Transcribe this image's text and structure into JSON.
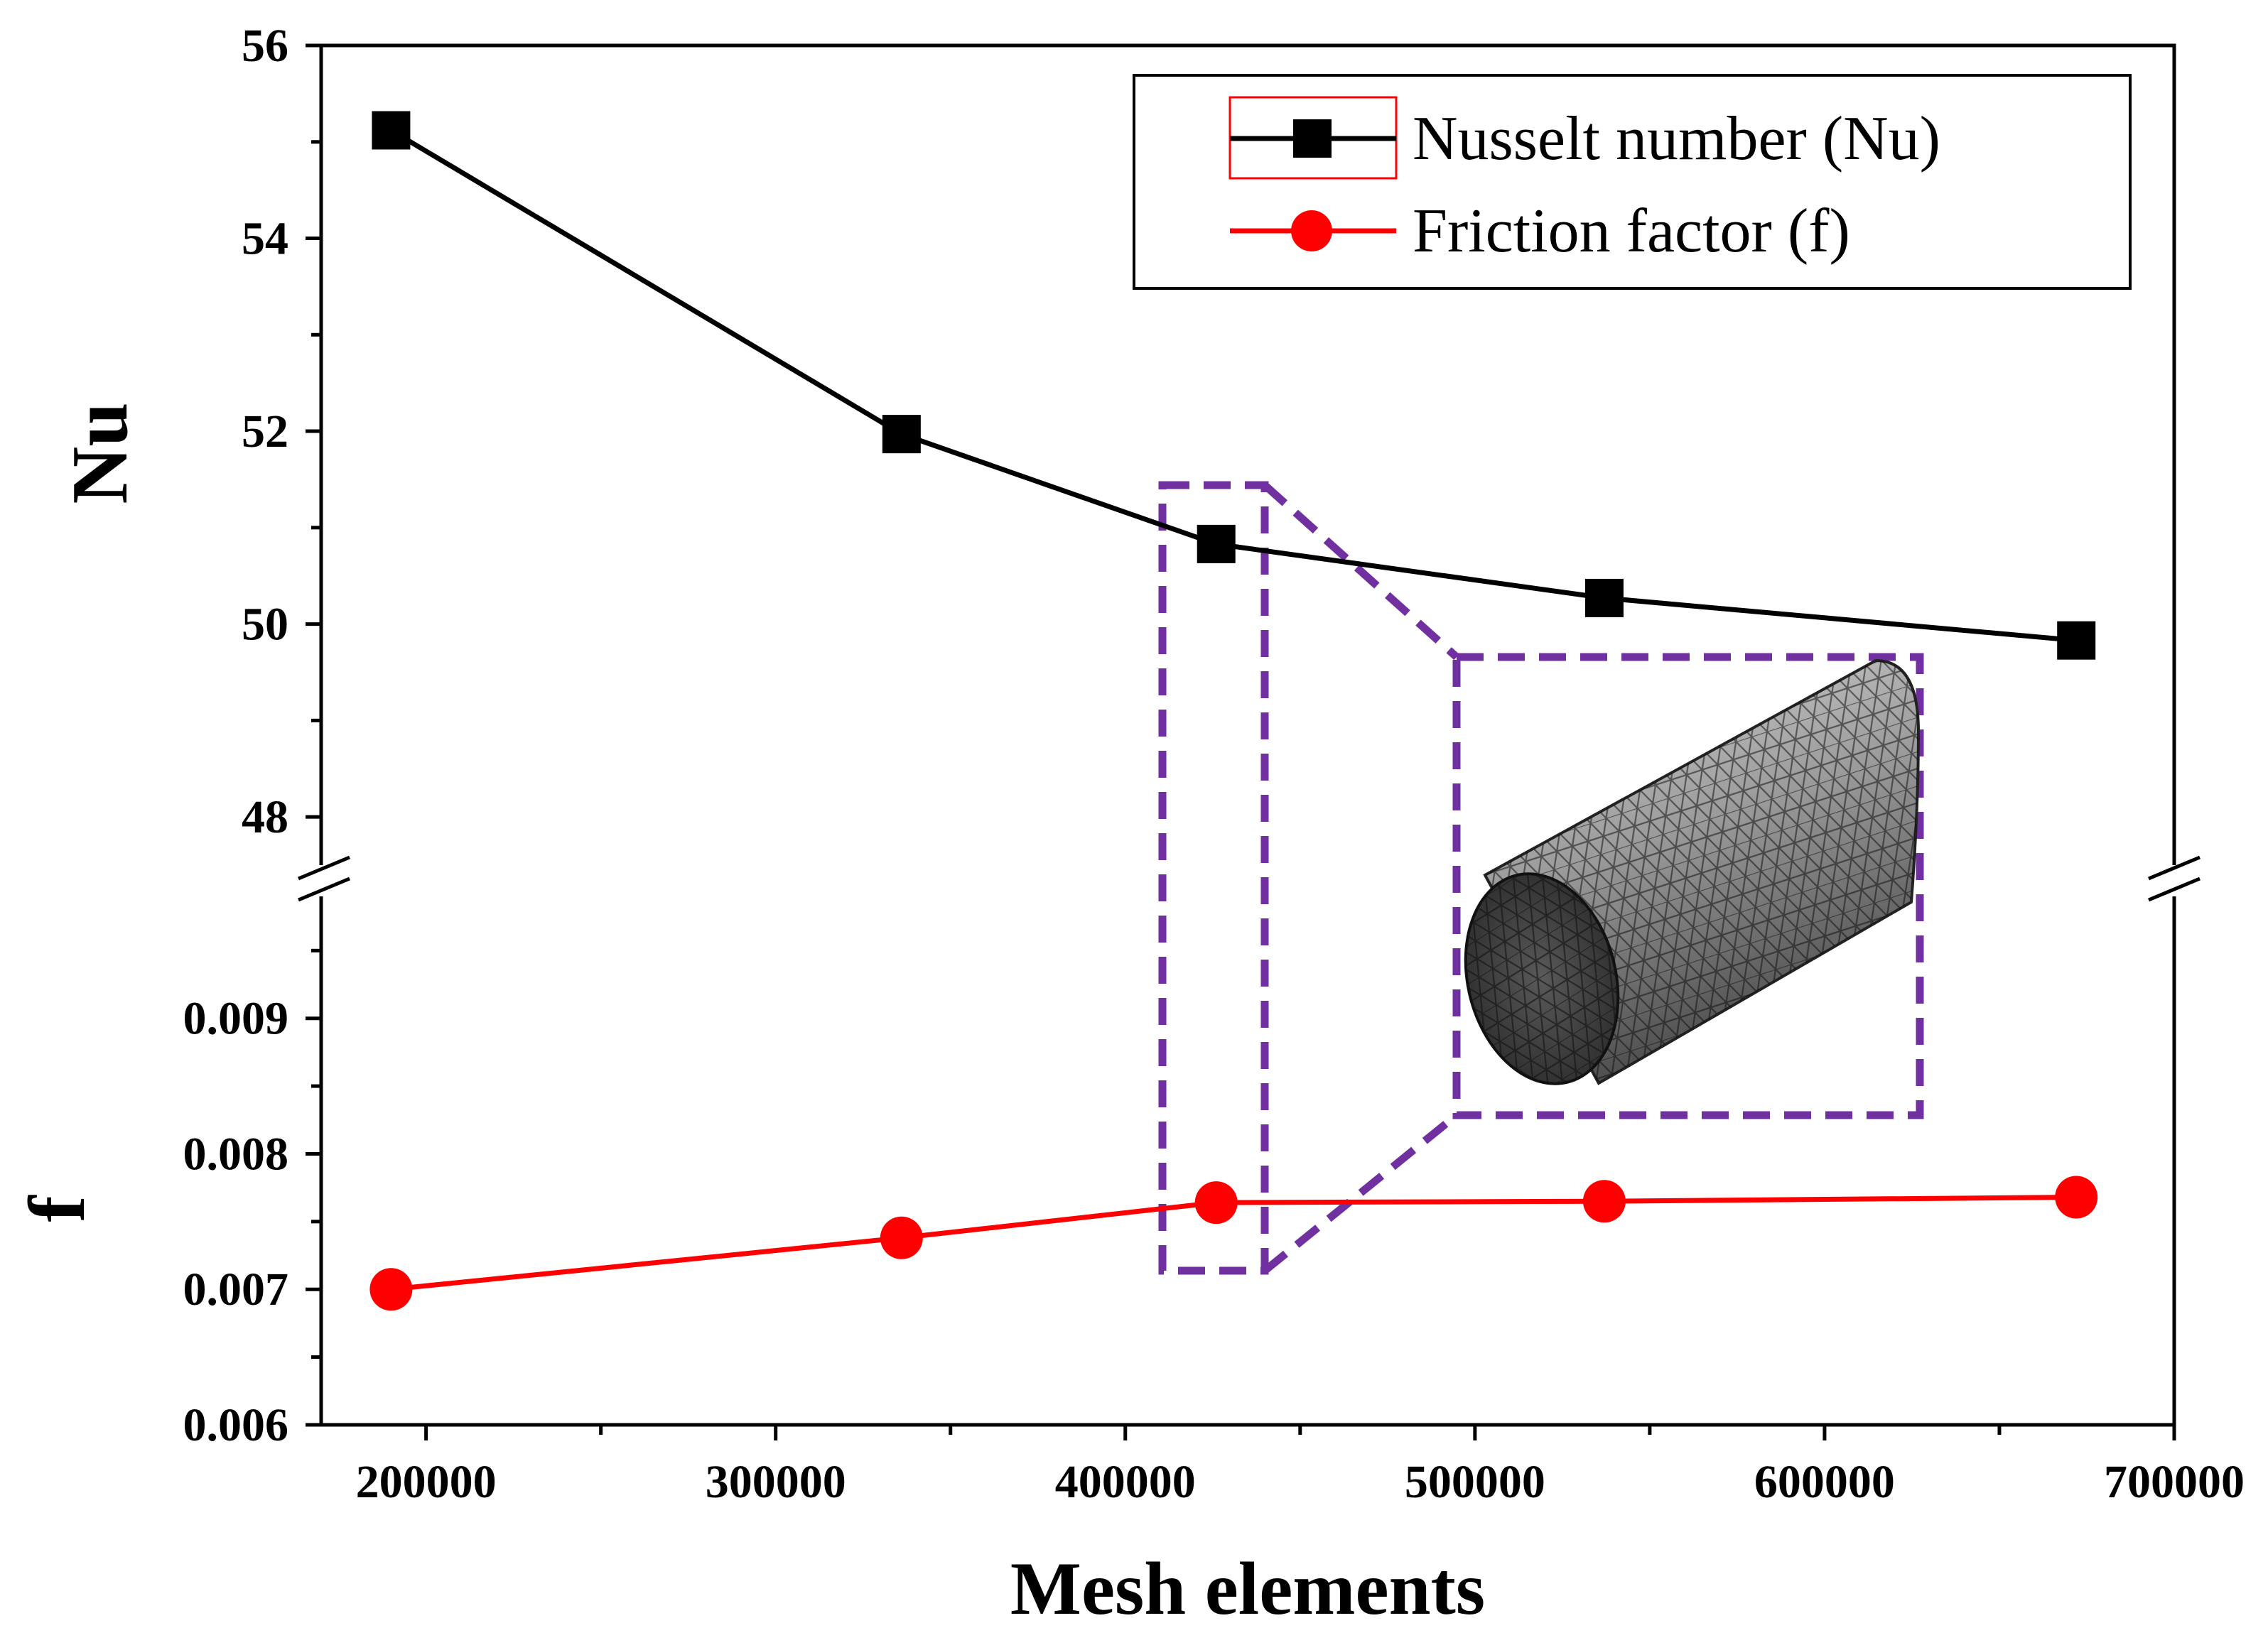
{
  "chart_data": {
    "type": "line",
    "xlabel": "Mesh elements",
    "x_ticks": [
      "200000",
      "300000",
      "400000",
      "500000",
      "600000",
      "700000"
    ],
    "xlim": [
      170000,
      700000
    ],
    "panels": [
      {
        "ylabel": "Nu",
        "ylim": [
          47.5,
          56
        ],
        "y_ticks": [
          "48",
          "50",
          "52",
          "54",
          "56"
        ],
        "series": [
          {
            "name": "Nusselt number (Nu)",
            "color": "#000000",
            "marker": "square",
            "x": [
              190000,
              336000,
              426000,
              537000,
              672000
            ],
            "y": [
              55.12,
              51.97,
              50.83,
              50.27,
              49.83
            ]
          }
        ]
      },
      {
        "ylabel": "f",
        "ylim": [
          0.006,
          0.0099
        ],
        "y_ticks": [
          "0.006",
          "0.007",
          "0.008",
          "0.009"
        ],
        "series": [
          {
            "name": "Friction factor (f)",
            "color": "#ff0000",
            "marker": "circle",
            "x": [
              190000,
              336000,
              426000,
              537000,
              672000
            ],
            "y": [
              0.007,
              0.00738,
              0.00764,
              0.00765,
              0.00768
            ]
          }
        ]
      }
    ],
    "legend": {
      "position": "top-right",
      "entries": [
        "Nusselt number (Nu)",
        "Friction factor (f)"
      ]
    },
    "annotation": "dashed zoom box from the 426000-element point to an inset showing the cylindrical mesh"
  }
}
